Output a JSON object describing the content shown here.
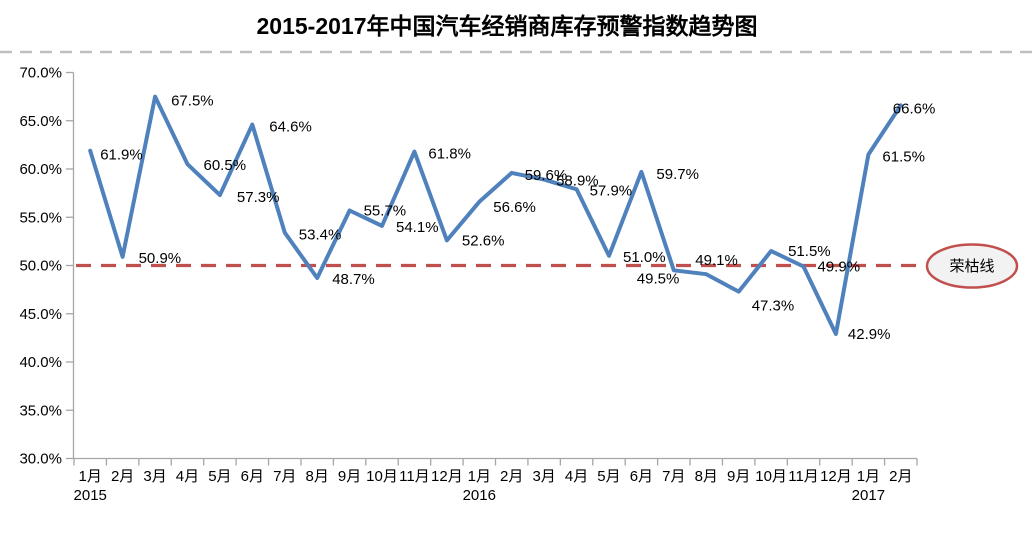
{
  "chart_data": {
    "type": "line",
    "title": "2015-2017年中国汽车经销商库存预警指数趋势图",
    "categories": [
      "1月",
      "2月",
      "3月",
      "4月",
      "5月",
      "6月",
      "7月",
      "8月",
      "9月",
      "10月",
      "11月",
      "12月",
      "1月",
      "2月",
      "3月",
      "4月",
      "5月",
      "6月",
      "7月",
      "8月",
      "9月",
      "10月",
      "11月",
      "12月",
      "1月",
      "2月"
    ],
    "year_labels": [
      {
        "label": "2015",
        "index": 0
      },
      {
        "label": "2016",
        "index": 12
      },
      {
        "label": "2017",
        "index": 24
      }
    ],
    "series": [
      {
        "values": [
          61.9,
          50.9,
          67.5,
          60.5,
          57.3,
          64.6,
          53.4,
          48.7,
          55.7,
          54.1,
          61.8,
          52.6,
          56.6,
          59.6,
          58.9,
          57.9,
          51.0,
          59.7,
          49.5,
          49.1,
          47.3,
          51.5,
          49.9,
          42.9,
          61.5,
          66.6
        ],
        "point_labels": [
          "61.9%",
          "50.9%",
          "67.5%",
          "60.5%",
          "57.3%",
          "64.6%",
          "53.4%",
          "48.7%",
          "55.7%",
          "54.1%",
          "61.8%",
          "52.6%",
          "56.6%",
          "59.6%",
          "58.9%",
          "57.9%",
          "51.0%",
          "59.7%",
          "49.5%",
          "49.1%",
          "47.3%",
          "51.5%",
          "49.9%",
          "42.9%",
          "61.5%",
          "66.6%"
        ],
        "color": "#4F81BD"
      }
    ],
    "ylim": [
      30,
      70
    ],
    "y_tick_step": 5,
    "y_tick_labels": [
      "70.0%",
      "65.0%",
      "60.0%",
      "55.0%",
      "50.0%",
      "45.0%",
      "40.0%",
      "35.0%",
      "30.0%"
    ],
    "grid": false,
    "legend_position": "none",
    "reference_line": {
      "value": 50,
      "label": "荣枯线",
      "style": "dashed",
      "color": "#C0504D"
    },
    "colors": {
      "axis": "#A6A6A6",
      "text": "#000000",
      "title_divider": "#BFBFBF",
      "badge_fill": "#F2F2F2",
      "badge_border": "#C0504D"
    }
  }
}
